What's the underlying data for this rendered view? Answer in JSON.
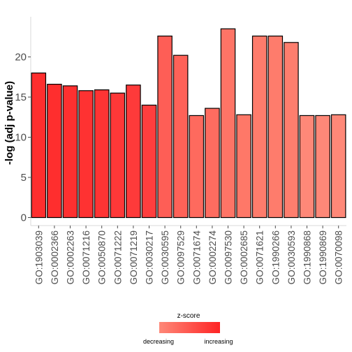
{
  "chart_data": {
    "type": "bar",
    "title": "",
    "xlabel": "",
    "ylabel": "-log (adj p-value)",
    "ylim": [
      -1,
      25
    ],
    "yticks": [
      0,
      5,
      10,
      15,
      20
    ],
    "grid": false,
    "legend_position": "bottom",
    "categories": [
      "GO:1903039",
      "GO:0002366",
      "GO:0002263",
      "GO:0071216",
      "GO:0050870",
      "GO:0071222",
      "GO:0071219",
      "GO:0030217",
      "GO:0030595",
      "GO:0097529",
      "GO:0071674",
      "GO:0002274",
      "GO:0097530",
      "GO:0002685",
      "GO:0071621",
      "GO:1990266",
      "GO:0030593",
      "GO:1990868",
      "GO:1990869",
      "GO:0070098"
    ],
    "values": [
      18.0,
      16.6,
      16.4,
      15.8,
      15.9,
      15.5,
      16.5,
      14.0,
      22.6,
      20.2,
      12.7,
      13.6,
      23.5,
      12.8,
      22.6,
      22.6,
      21.8,
      12.7,
      12.7,
      12.8
    ],
    "z_fill": [
      "#fe2e2e",
      "#fe2e2e",
      "#fe3030",
      "#fe3232",
      "#fe3434",
      "#fe3838",
      "#fe3a3a",
      "#fe3e3e",
      "#fe5e56",
      "#fe6258",
      "#fe6a5e",
      "#fe6c60",
      "#fe7466",
      "#fe7868",
      "#fe7c6c",
      "#fe7c6c",
      "#fe7e6e",
      "#fe8878",
      "#fe8878",
      "#fe8878"
    ],
    "legend": {
      "title": "z-score",
      "low_label": "decreasing",
      "high_label": "increasing",
      "low_color": "#fe8878",
      "high_color": "#fe2424"
    }
  }
}
